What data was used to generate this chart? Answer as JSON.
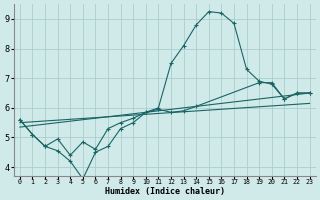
{
  "bg_color": "#d0eaea",
  "grid_color": "#aacece",
  "line_color": "#1a6464",
  "xlabel": "Humidex (Indice chaleur)",
  "xlim": [
    -0.5,
    23.5
  ],
  "ylim": [
    3.7,
    9.5
  ],
  "xticks": [
    0,
    1,
    2,
    3,
    4,
    5,
    6,
    7,
    8,
    9,
    10,
    11,
    12,
    13,
    14,
    15,
    16,
    17,
    18,
    19,
    20,
    21,
    22,
    23
  ],
  "yticks": [
    4,
    5,
    6,
    7,
    8,
    9
  ],
  "curve1_x": [
    0,
    1,
    2,
    3,
    4,
    5,
    6,
    7,
    8,
    9,
    10,
    11,
    12,
    13,
    14,
    15,
    16,
    17,
    18,
    19,
    20,
    21,
    22,
    23
  ],
  "curve1_y": [
    5.6,
    5.1,
    4.7,
    4.55,
    4.2,
    3.6,
    4.5,
    4.7,
    5.3,
    5.5,
    5.85,
    6.0,
    7.5,
    8.1,
    8.8,
    9.25,
    9.2,
    8.85,
    7.3,
    6.9,
    6.8,
    6.3,
    6.5,
    6.5
  ],
  "curve2_x": [
    0,
    1,
    2,
    3,
    4,
    5,
    6,
    7,
    8,
    9,
    10,
    11,
    12,
    13,
    14,
    19,
    20,
    21,
    22,
    23
  ],
  "curve2_y": [
    5.6,
    5.1,
    4.7,
    4.95,
    4.4,
    4.85,
    4.6,
    5.3,
    5.5,
    5.65,
    5.85,
    5.95,
    5.85,
    5.9,
    6.05,
    6.85,
    6.85,
    6.3,
    6.5,
    6.5
  ],
  "line3_x": [
    0,
    23
  ],
  "line3_y": [
    5.35,
    6.5
  ],
  "line4_x": [
    0,
    23
  ],
  "line4_y": [
    5.5,
    6.15
  ]
}
